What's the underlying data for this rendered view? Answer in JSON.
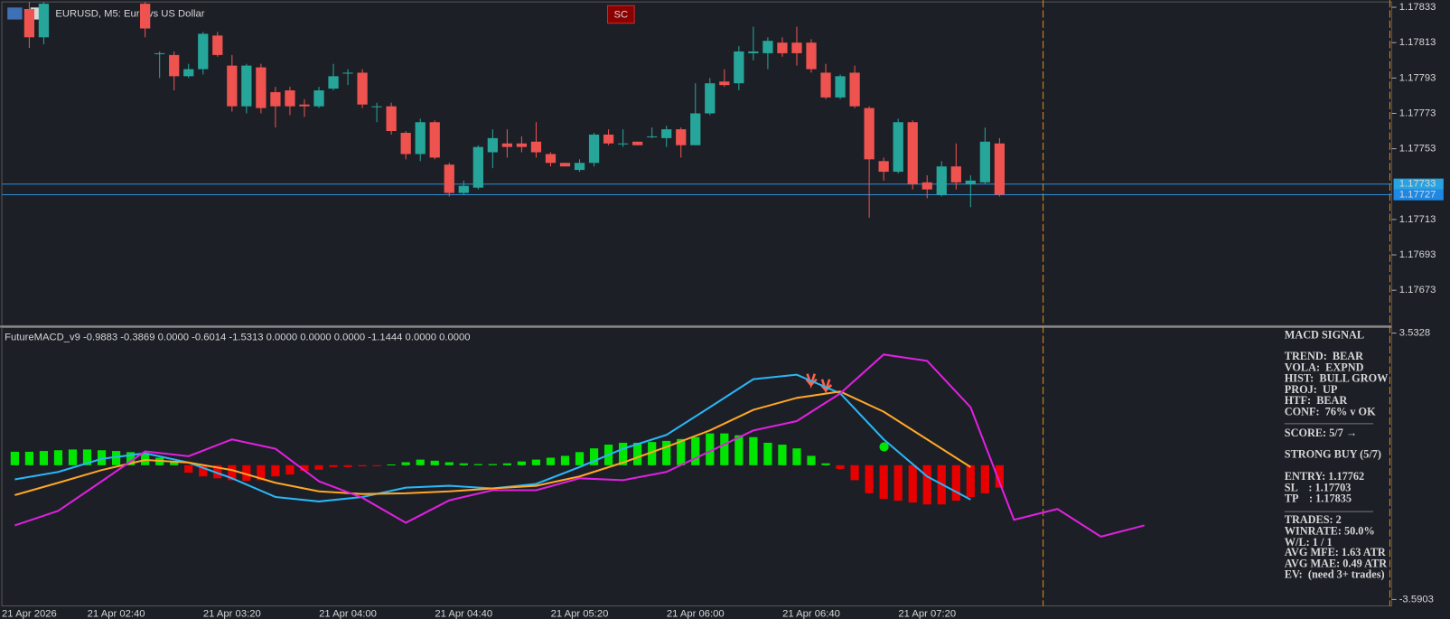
{
  "header": {
    "title": "EURUSD, M5:  Euro vs US Dollar",
    "button": "SC"
  },
  "indicator_label": "FutureMACD_v9 -0.9883 -0.3869 0.0000 -0.6014 -1.5313 0.0000 0.0000 0.0000 -1.1444 0.0000 0.0000",
  "chart_data": [
    {
      "type": "candlestick",
      "bull_color": "#26a69a",
      "bear_color": "#ef5350",
      "ylim": [
        1.17654,
        1.17836
      ],
      "yticks": [
        1.17833,
        1.17813,
        1.17793,
        1.17773,
        1.17753,
        1.17713,
        1.17693,
        1.17673
      ],
      "price_lines": [
        1.17733,
        1.17727
      ],
      "x_labels": [
        "21 Apr 2026",
        "21 Apr 02:40",
        "21 Apr 03:20",
        "21 Apr 04:00",
        "21 Apr 04:40",
        "21 Apr 05:20",
        "21 Apr 06:00",
        "21 Apr 06:40",
        "21 Apr 07:20"
      ],
      "candles": [
        null,
        {
          "open": 1.17832,
          "high": 1.17836,
          "low": 1.1781,
          "close": 1.17816
        },
        {
          "open": 1.17816,
          "high": 1.17836,
          "low": 1.17812,
          "close": 1.17835
        },
        null,
        null,
        null,
        null,
        null,
        null,
        {
          "open": 1.17835,
          "high": 1.17836,
          "low": 1.17816,
          "close": 1.17821
        },
        {
          "open": 1.17807,
          "high": 1.17808,
          "low": 1.17793,
          "close": 1.17807
        },
        {
          "open": 1.17806,
          "high": 1.17808,
          "low": 1.17786,
          "close": 1.17794
        },
        {
          "open": 1.17794,
          "high": 1.17801,
          "low": 1.17793,
          "close": 1.17798
        },
        {
          "open": 1.17798,
          "high": 1.17819,
          "low": 1.17795,
          "close": 1.17818
        },
        {
          "open": 1.17817,
          "high": 1.17819,
          "low": 1.17805,
          "close": 1.17806
        },
        {
          "open": 1.178,
          "high": 1.17806,
          "low": 1.17774,
          "close": 1.17777
        },
        {
          "open": 1.17777,
          "high": 1.17801,
          "low": 1.17773,
          "close": 1.178
        },
        {
          "open": 1.17799,
          "high": 1.17801,
          "low": 1.17773,
          "close": 1.17776
        },
        {
          "open": 1.17785,
          "high": 1.17788,
          "low": 1.17765,
          "close": 1.17777
        },
        {
          "open": 1.17786,
          "high": 1.17788,
          "low": 1.17772,
          "close": 1.17777
        },
        {
          "open": 1.17778,
          "high": 1.17781,
          "low": 1.17771,
          "close": 1.17777
        },
        {
          "open": 1.17777,
          "high": 1.17788,
          "low": 1.17776,
          "close": 1.17786
        },
        {
          "open": 1.17787,
          "high": 1.17801,
          "low": 1.17786,
          "close": 1.17794
        },
        {
          "open": 1.17796,
          "high": 1.17798,
          "low": 1.17789,
          "close": 1.17796
        },
        {
          "open": 1.17796,
          "high": 1.17798,
          "low": 1.17776,
          "close": 1.17778
        },
        {
          "open": 1.17777,
          "high": 1.17779,
          "low": 1.17768,
          "close": 1.17777
        },
        {
          "open": 1.17777,
          "high": 1.17779,
          "low": 1.17761,
          "close": 1.17763
        },
        {
          "open": 1.17762,
          "high": 1.17763,
          "low": 1.17747,
          "close": 1.1775
        },
        {
          "open": 1.1775,
          "high": 1.1777,
          "low": 1.17746,
          "close": 1.17768
        },
        {
          "open": 1.17768,
          "high": 1.17769,
          "low": 1.17747,
          "close": 1.17748
        },
        {
          "open": 1.17744,
          "high": 1.17745,
          "low": 1.17726,
          "close": 1.17728
        },
        {
          "open": 1.17728,
          "high": 1.17735,
          "low": 1.17727,
          "close": 1.17732
        },
        {
          "open": 1.17731,
          "high": 1.17755,
          "low": 1.1773,
          "close": 1.17754
        },
        {
          "open": 1.17751,
          "high": 1.17764,
          "low": 1.17742,
          "close": 1.17759
        },
        {
          "open": 1.17756,
          "high": 1.17764,
          "low": 1.17748,
          "close": 1.17754
        },
        {
          "open": 1.17756,
          "high": 1.1776,
          "low": 1.17751,
          "close": 1.17754
        },
        {
          "open": 1.17757,
          "high": 1.17768,
          "low": 1.17748,
          "close": 1.17751
        },
        {
          "open": 1.1775,
          "high": 1.17751,
          "low": 1.17743,
          "close": 1.17745
        },
        {
          "open": 1.17745,
          "high": 1.17745,
          "low": 1.17743,
          "close": 1.17743
        },
        {
          "open": 1.17741,
          "high": 1.17747,
          "low": 1.1774,
          "close": 1.17745
        },
        {
          "open": 1.17745,
          "high": 1.17762,
          "low": 1.17743,
          "close": 1.17761
        },
        {
          "open": 1.17761,
          "high": 1.17764,
          "low": 1.17755,
          "close": 1.17756
        },
        {
          "open": 1.17756,
          "high": 1.17764,
          "low": 1.17754,
          "close": 1.17756
        },
        {
          "open": 1.17757,
          "high": 1.17757,
          "low": 1.17755,
          "close": 1.17755
        },
        {
          "open": 1.1776,
          "high": 1.17765,
          "low": 1.17759,
          "close": 1.1776
        },
        {
          "open": 1.17759,
          "high": 1.17766,
          "low": 1.17754,
          "close": 1.17764
        },
        {
          "open": 1.17764,
          "high": 1.17765,
          "low": 1.17748,
          "close": 1.17755
        },
        {
          "open": 1.17755,
          "high": 1.1779,
          "low": 1.17755,
          "close": 1.17773
        },
        {
          "open": 1.17773,
          "high": 1.17793,
          "low": 1.17772,
          "close": 1.1779
        },
        {
          "open": 1.17791,
          "high": 1.17798,
          "low": 1.17788,
          "close": 1.17789
        },
        {
          "open": 1.1779,
          "high": 1.17811,
          "low": 1.17786,
          "close": 1.17808
        },
        {
          "open": 1.17807,
          "high": 1.17822,
          "low": 1.17803,
          "close": 1.17808
        },
        {
          "open": 1.17807,
          "high": 1.17816,
          "low": 1.17798,
          "close": 1.17814
        },
        {
          "open": 1.17813,
          "high": 1.17816,
          "low": 1.17805,
          "close": 1.17807
        },
        {
          "open": 1.17813,
          "high": 1.17822,
          "low": 1.178,
          "close": 1.17807
        },
        {
          "open": 1.17813,
          "high": 1.17815,
          "low": 1.17796,
          "close": 1.17798
        },
        {
          "open": 1.17796,
          "high": 1.17801,
          "low": 1.17781,
          "close": 1.17782
        },
        {
          "open": 1.17782,
          "high": 1.17795,
          "low": 1.17781,
          "close": 1.17794
        },
        {
          "open": 1.17796,
          "high": 1.178,
          "low": 1.17776,
          "close": 1.17777
        },
        {
          "open": 1.17776,
          "high": 1.17777,
          "low": 1.17714,
          "close": 1.17747
        },
        {
          "open": 1.17746,
          "high": 1.17748,
          "low": 1.17735,
          "close": 1.1774
        },
        {
          "open": 1.1774,
          "high": 1.1777,
          "low": 1.17739,
          "close": 1.17768
        },
        {
          "open": 1.17768,
          "high": 1.17769,
          "low": 1.1773,
          "close": 1.17733
        },
        {
          "open": 1.17734,
          "high": 1.17738,
          "low": 1.17725,
          "close": 1.1773
        },
        {
          "open": 1.17727,
          "high": 1.17746,
          "low": 1.17726,
          "close": 1.17743
        },
        {
          "open": 1.17743,
          "high": 1.17756,
          "low": 1.1773,
          "close": 1.17734
        },
        {
          "open": 1.17733,
          "high": 1.17738,
          "low": 1.1772,
          "close": 1.17735
        },
        {
          "open": 1.17734,
          "high": 1.17765,
          "low": 1.17733,
          "close": 1.17757
        },
        {
          "open": 1.17756,
          "high": 1.17759,
          "low": 1.17726,
          "close": 1.17727
        }
      ]
    },
    {
      "type": "macd",
      "ylim": [
        -3.5903,
        3.5328
      ],
      "yticks": [
        3.5328,
        -3.5903
      ],
      "histogram": {
        "pos_color": "#00e600",
        "neg_color": "#e60000",
        "values": [
          0.36,
          0.36,
          0.38,
          0.4,
          0.42,
          0.42,
          0.4,
          0.38,
          0.35,
          0.3,
          0.2,
          0.1,
          -0.2,
          -0.3,
          -0.35,
          -0.4,
          -0.42,
          -0.4,
          -0.3,
          -0.25,
          -0.15,
          -0.12,
          -0.05,
          -0.05,
          -0.03,
          -0.02,
          0.02,
          0.08,
          0.15,
          0.12,
          0.08,
          0.05,
          0.03,
          0.03,
          0.05,
          0.1,
          0.15,
          0.2,
          0.25,
          0.35,
          0.45,
          0.55,
          0.6,
          0.6,
          0.62,
          0.65,
          0.7,
          0.75,
          0.85,
          0.85,
          0.8,
          0.75,
          0.6,
          0.55,
          0.45,
          0.25,
          0.05,
          -0.1,
          -0.4,
          -0.75,
          -0.9,
          -0.95,
          -1.0,
          -1.05,
          -1.05,
          -0.95,
          -0.85,
          -0.75,
          -0.6
        ]
      },
      "series": [
        {
          "color": "#29b6f6",
          "values": [
            -0.38,
            -0.18,
            0.17,
            0.32,
            0.07,
            -0.35,
            -0.85,
            -0.97,
            -0.85,
            -0.6,
            -0.55,
            -0.62,
            -0.5,
            -0.05,
            0.44,
            0.81,
            1.55,
            2.3,
            2.42,
            1.92,
            0.69,
            -0.3,
            -0.92,
            null,
            null,
            null,
            null
          ]
        },
        {
          "color": "#ffa726",
          "values": [
            -0.8,
            -0.47,
            -0.13,
            0.14,
            0.07,
            -0.13,
            -0.47,
            -0.7,
            -0.77,
            -0.75,
            -0.7,
            -0.62,
            -0.55,
            -0.3,
            0.07,
            0.49,
            0.93,
            1.48,
            1.8,
            1.97,
            1.43,
            0.69,
            -0.05,
            null,
            null,
            null,
            null
          ]
        },
        {
          "color": "#e020e0",
          "values": [
            -1.61,
            -1.22,
            -0.43,
            0.37,
            0.24,
            0.69,
            0.44,
            -0.43,
            -0.87,
            -1.54,
            -0.94,
            -0.67,
            -0.67,
            -0.35,
            -0.4,
            -0.18,
            0.37,
            0.93,
            1.18,
            1.92,
            2.96,
            2.79,
            1.55,
            -1.46,
            -1.17,
            -1.91,
            -1.61
          ]
        }
      ]
    }
  ],
  "panel": {
    "title": "MACD SIGNAL",
    "lines": [
      {
        "text": "TREND:  BEAR",
        "color": "#ff6347"
      },
      {
        "text": "VOLA:  EXPND",
        "color": "#00e600"
      },
      {
        "text": "HIST:  BULL GROW",
        "color": "#00e600"
      },
      {
        "text": "PROJ:  UP",
        "color": "#00e600"
      },
      {
        "text": "HTF:  BEAR",
        "color": "#ff6347"
      },
      {
        "text": "CONF:  76% v OK",
        "color": "#ff6347"
      },
      {
        "text": "SCORE: 5/7 →",
        "color": "#ffffff"
      },
      {
        "text": "STRONG BUY (5/7)",
        "color": "#00e600"
      },
      {
        "text": "ENTRY: 1.17762",
        "color": "#ffffff"
      },
      {
        "text": "SL    : 1.17703",
        "color": "#ff6347"
      },
      {
        "text": "TP    : 1.17835",
        "color": "#00e600"
      },
      {
        "text": "TRADES: 2",
        "color": "#ffffff"
      },
      {
        "text": "WINRATE: 50.0%",
        "color": "#00e600"
      },
      {
        "text": "W/L: 1 / 1",
        "color": "#ffffff"
      },
      {
        "text": "AVG MFE: 1.63 ATR",
        "color": "#00e600"
      },
      {
        "text": "AVG MAE: 0.49 ATR",
        "color": "#00e600"
      },
      {
        "text": "EV:  (need 3+ trades)",
        "color": "#00e600"
      }
    ]
  }
}
